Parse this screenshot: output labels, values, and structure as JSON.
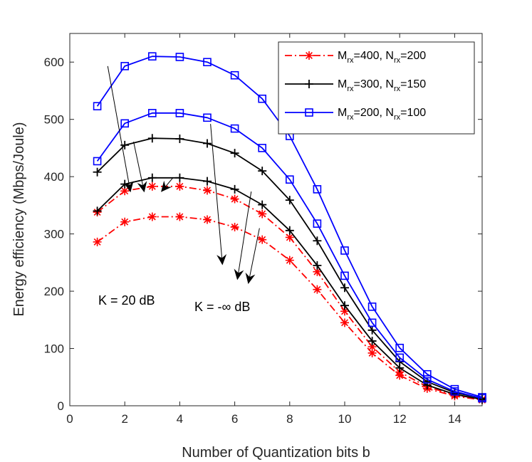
{
  "chart_data": {
    "type": "line",
    "title": "",
    "xlabel": "Number of Quantization bits b",
    "ylabel": "Energy efficiency (Mbps/Joule)",
    "xlim": [
      0,
      15
    ],
    "ylim": [
      0,
      650
    ],
    "xticks": [
      0,
      2,
      4,
      6,
      8,
      10,
      12,
      14
    ],
    "yticks": [
      0,
      100,
      200,
      300,
      400,
      500,
      600
    ],
    "grid": false,
    "legend_position": "top-right",
    "x": [
      1,
      2,
      3,
      4,
      5,
      6,
      7,
      8,
      9,
      10,
      11,
      12,
      13,
      14,
      15
    ],
    "series": [
      {
        "name": "M_rx=400, N_rx=200",
        "legend": {
          "m": "M",
          "m_sub": "rx",
          "m_val": "=400, N",
          "n_sub": "rx",
          "n_val": "=200"
        },
        "color": "#ff0000",
        "line_style": "dashdot",
        "marker": "asterisk",
        "curves": [
          {
            "condition": "K = 20 dB",
            "values": [
              338,
              375,
              383,
              383,
              376,
              361,
              335,
              294,
              234,
              165,
              103,
              59,
              33,
              19,
              11
            ]
          },
          {
            "condition": "K = -∞ dB",
            "values": [
              286,
              321,
              330,
              330,
              325,
              312,
              290,
              254,
              203,
              145,
              92,
              53,
              30,
              17,
              10
            ]
          }
        ]
      },
      {
        "name": "M_rx=300, N_rx=150",
        "legend": {
          "m": "M",
          "m_sub": "rx",
          "m_val": "=300, N",
          "n_sub": "rx",
          "n_val": "=150"
        },
        "color": "#000000",
        "line_style": "solid",
        "marker": "plus",
        "curves": [
          {
            "condition": "K = 20 dB",
            "values": [
              408,
              455,
              467,
              466,
              458,
              441,
              410,
              359,
              288,
              206,
              132,
              77,
              42,
              23,
              13
            ]
          },
          {
            "condition": "K = -∞ dB",
            "values": [
              340,
              387,
              398,
              398,
              392,
              378,
              351,
              306,
              245,
              175,
              113,
              66,
              36,
              20,
              11
            ]
          }
        ]
      },
      {
        "name": "M_rx=200, N_rx=100",
        "legend": {
          "m": "M",
          "m_sub": "rx",
          "m_val": "=200, N",
          "n_sub": "rx",
          "n_val": "=100"
        },
        "color": "#0000ff",
        "line_style": "solid",
        "marker": "square",
        "curves": [
          {
            "condition": "K = 20 dB",
            "values": [
              523,
              593,
              610,
              609,
              600,
              577,
              536,
              471,
              378,
              271,
              173,
              101,
              55,
              29,
              15
            ]
          },
          {
            "condition": "K = -∞ dB",
            "values": [
              427,
              493,
              511,
              511,
              503,
              484,
              450,
              395,
              318,
              227,
              145,
              84,
              46,
              25,
              13
            ]
          }
        ]
      }
    ],
    "annotations": [
      {
        "label": "K = 20 dB",
        "arrows": [
          {
            "from": [
              1.38,
              593
            ],
            "to": [
              2.2,
              375
            ]
          },
          {
            "from": [
              2.32,
              461
            ],
            "to": [
              2.7,
              375
            ]
          },
          {
            "from": [
              3.75,
              398
            ],
            "to": [
              3.35,
              375
            ]
          }
        ]
      },
      {
        "label": "K = -∞ dB",
        "arrows": [
          {
            "from": [
              5.12,
              492
            ],
            "to": [
              5.55,
              248
            ]
          },
          {
            "from": [
              6.6,
              374
            ],
            "to": [
              6.1,
              222
            ]
          },
          {
            "from": [
              6.9,
              310
            ],
            "to": [
              6.5,
              215
            ]
          }
        ]
      }
    ]
  }
}
